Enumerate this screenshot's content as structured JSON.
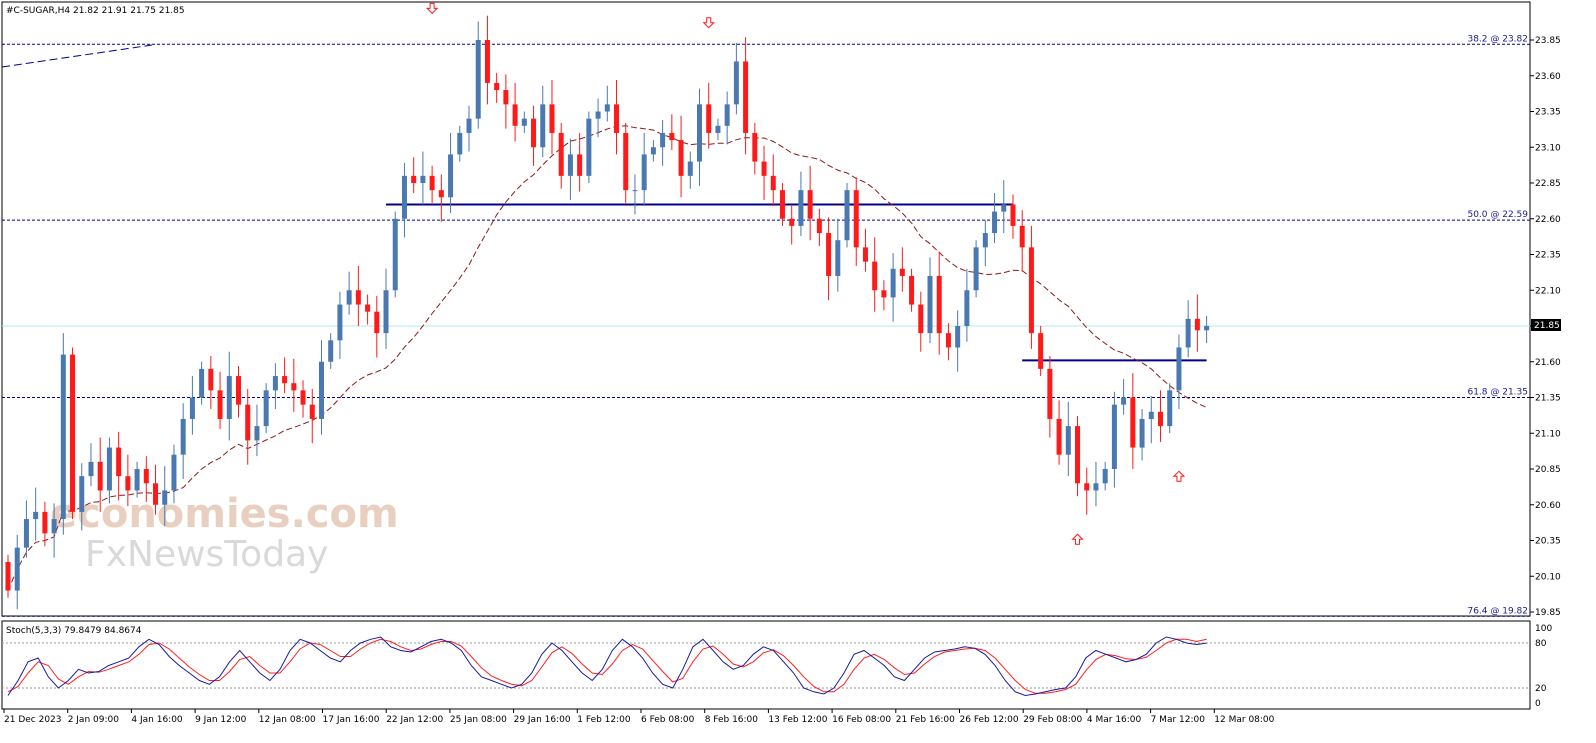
{
  "header": "#C-SUGAR,H4  21.82 21.91 21.75 21.85",
  "stoch_header": "Stoch(5,3,3) 79.8479 84.8674",
  "watermark": {
    "line1": "economies.com",
    "line2": "FxNewsToday"
  },
  "price_tag": "21.85",
  "colors": {
    "bull": "#4a78b0",
    "bear": "#ff1a1a",
    "ma": "#8b1a1a",
    "level": "#00008b",
    "stoch_main": "#1a1a9e",
    "stoch_signal": "#ff2020",
    "cursor": "#b0e8ec"
  },
  "chart_data": {
    "type": "candlestick",
    "symbol": "#C-SUGAR",
    "timeframe": "H4",
    "ohlc_current": {
      "open": 21.82,
      "high": 21.91,
      "low": 21.75,
      "close": 21.85
    },
    "y_ticks": [
      "23.85",
      "23.60",
      "23.35",
      "23.10",
      "22.85",
      "22.60",
      "22.35",
      "22.10",
      "21.85",
      "21.60",
      "21.35",
      "21.10",
      "20.85",
      "20.60",
      "20.35",
      "20.10",
      "19.85"
    ],
    "x_ticks": [
      "21 Dec 2023",
      "2 Jan 09:00",
      "4 Jan 16:00",
      "9 Jan 12:00",
      "12 Jan 08:00",
      "17 Jan 16:00",
      "22 Jan 12:00",
      "25 Jan 08:00",
      "29 Jan 16:00",
      "1 Feb 12:00",
      "6 Feb 08:00",
      "8 Feb 16:00",
      "13 Feb 12:00",
      "16 Feb 08:00",
      "21 Feb 16:00",
      "26 Feb 12:00",
      "29 Feb 08:00",
      "4 Mar 16:00",
      "7 Mar 12:00",
      "12 Mar 08:00"
    ],
    "fib_levels": [
      {
        "label": "38.2 @ 23.82",
        "value": 23.82
      },
      {
        "label": "50.0 @ 22.59",
        "value": 22.59
      },
      {
        "label": "61.8 @ 21.35",
        "value": 21.35
      },
      {
        "label": "76.4 @ 19.82",
        "value": 19.82
      }
    ],
    "horizontal_lines": [
      {
        "value": 22.7,
        "from_bar": 41,
        "to_bar": 109
      },
      {
        "value": 21.61,
        "from_bar": 110,
        "to_bar": 130
      }
    ],
    "current_price": 21.85,
    "closes": [
      20.0,
      20.3,
      20.5,
      20.55,
      20.4,
      20.5,
      21.65,
      20.55,
      20.8,
      20.9,
      20.7,
      21.0,
      20.8,
      20.7,
      20.85,
      20.75,
      20.6,
      20.7,
      20.95,
      21.2,
      21.35,
      21.55,
      21.4,
      21.2,
      21.5,
      21.3,
      21.05,
      21.15,
      21.4,
      21.5,
      21.45,
      21.4,
      21.3,
      21.2,
      21.6,
      21.75,
      22.0,
      22.1,
      22.0,
      21.95,
      21.8,
      22.1,
      22.6,
      22.9,
      22.85,
      22.9,
      22.8,
      22.75,
      23.05,
      23.2,
      23.3,
      23.85,
      23.55,
      23.5,
      23.4,
      23.25,
      23.3,
      23.1,
      23.4,
      23.2,
      22.9,
      23.05,
      22.9,
      23.3,
      23.35,
      23.4,
      23.2,
      22.8,
      22.8,
      23.05,
      23.1,
      23.2,
      23.15,
      22.9,
      23.0,
      23.4,
      23.2,
      23.25,
      23.4,
      23.7,
      23.2,
      23.0,
      22.9,
      22.8,
      22.6,
      22.55,
      22.8,
      22.6,
      22.5,
      22.2,
      22.45,
      22.8,
      22.4,
      22.3,
      22.1,
      22.05,
      22.25,
      22.2,
      22.0,
      21.8,
      22.2,
      21.8,
      21.7,
      21.85,
      22.1,
      22.4,
      22.5,
      22.65,
      22.7,
      22.55,
      22.4,
      21.8,
      21.55,
      21.2,
      20.95,
      21.15,
      20.75,
      20.7,
      20.75,
      20.85,
      21.3,
      21.35,
      21.0,
      21.2,
      21.25,
      21.15,
      21.4,
      21.7,
      21.9,
      21.82,
      21.85
    ],
    "stochastic": {
      "main_label": "79.8479",
      "signal_label": "84.8674",
      "levels": [
        100,
        80,
        20,
        0
      ],
      "main": [
        10,
        30,
        55,
        60,
        35,
        20,
        30,
        45,
        40,
        42,
        50,
        55,
        60,
        75,
        85,
        78,
        62,
        50,
        40,
        30,
        25,
        35,
        55,
        70,
        55,
        40,
        30,
        45,
        70,
        85,
        80,
        70,
        60,
        55,
        70,
        80,
        85,
        88,
        75,
        70,
        68,
        75,
        82,
        85,
        80,
        70,
        50,
        35,
        30,
        25,
        20,
        25,
        40,
        65,
        80,
        70,
        55,
        40,
        30,
        45,
        70,
        85,
        75,
        60,
        40,
        25,
        20,
        45,
        75,
        85,
        70,
        55,
        45,
        50,
        65,
        75,
        70,
        55,
        40,
        20,
        15,
        12,
        20,
        40,
        65,
        70,
        60,
        50,
        35,
        30,
        45,
        60,
        68,
        70,
        72,
        75,
        73,
        65,
        50,
        30,
        15,
        10,
        12,
        15,
        18,
        20,
        35,
        60,
        70,
        65,
        60,
        55,
        58,
        65,
        80,
        88,
        85,
        80,
        78,
        79.85
      ],
      "signal": [
        15,
        22,
        40,
        55,
        50,
        32,
        25,
        35,
        42,
        41,
        45,
        50,
        55,
        65,
        78,
        80,
        72,
        60,
        48,
        38,
        30,
        30,
        42,
        58,
        62,
        50,
        40,
        40,
        55,
        72,
        80,
        78,
        70,
        62,
        62,
        72,
        80,
        85,
        82,
        75,
        70,
        72,
        78,
        82,
        82,
        76,
        62,
        47,
        36,
        30,
        25,
        23,
        30,
        48,
        67,
        75,
        66,
        52,
        40,
        38,
        52,
        70,
        78,
        72,
        57,
        42,
        28,
        33,
        55,
        72,
        76,
        65,
        52,
        48,
        55,
        67,
        71,
        63,
        50,
        35,
        22,
        15,
        15,
        25,
        45,
        60,
        65,
        58,
        47,
        38,
        40,
        52,
        62,
        68,
        70,
        72,
        73,
        70,
        60,
        45,
        30,
        18,
        13,
        13,
        15,
        18,
        25,
        43,
        58,
        65,
        63,
        59,
        58,
        61,
        70,
        80,
        85,
        85,
        82,
        84.87
      ]
    }
  }
}
